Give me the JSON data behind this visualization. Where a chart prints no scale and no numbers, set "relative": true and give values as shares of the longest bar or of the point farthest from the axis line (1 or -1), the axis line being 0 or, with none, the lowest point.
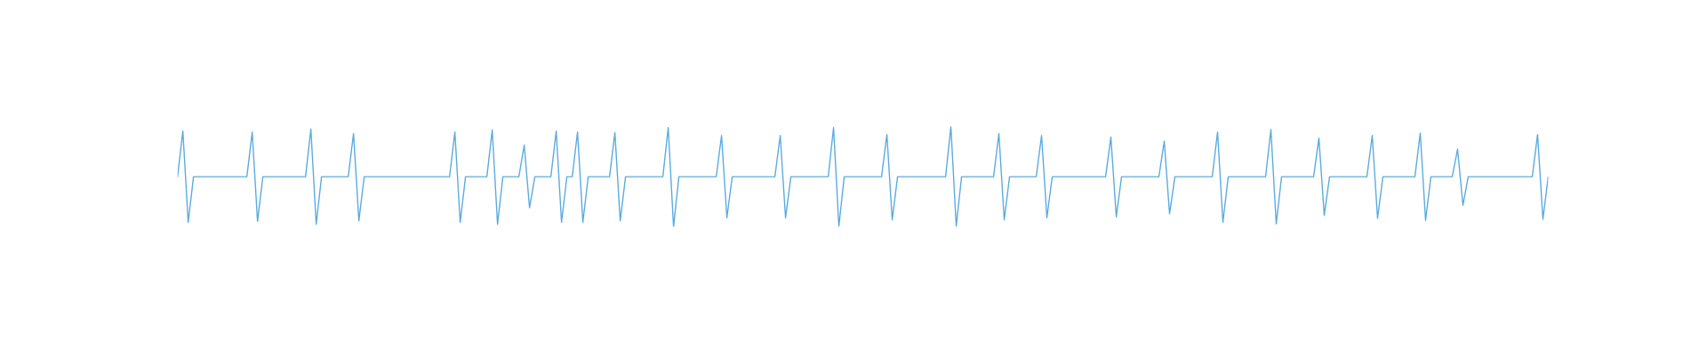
{
  "chart_data": {
    "type": "line",
    "relative": true,
    "categories": [
      null,
      null,
      null,
      null,
      null,
      null,
      null,
      null,
      null,
      null,
      null,
      null,
      null,
      null,
      null,
      null,
      null,
      null,
      null,
      null,
      null,
      null,
      null,
      null,
      null,
      null,
      null,
      null,
      null,
      null,
      null,
      null,
      null,
      null,
      null,
      null,
      null,
      null,
      null,
      null,
      null,
      null,
      null,
      null,
      null,
      null,
      null,
      null,
      null,
      null,
      null,
      null,
      null,
      null,
      null,
      null,
      null,
      null,
      null,
      null,
      null,
      null,
      null,
      null,
      null,
      null,
      null,
      null,
      null,
      null,
      null,
      null,
      null,
      null,
      null,
      null,
      null,
      null,
      null,
      null,
      null,
      null,
      null,
      null,
      null,
      null,
      null,
      null,
      null,
      null,
      null,
      null,
      null,
      null,
      null,
      null,
      null,
      null,
      null,
      null,
      null,
      null,
      null,
      null,
      null,
      null,
      null,
      null,
      null,
      null,
      null,
      null,
      null,
      null,
      null,
      null,
      null,
      null,
      null,
      null,
      null,
      null,
      null,
      null,
      null,
      null,
      null,
      null,
      null,
      null,
      null,
      null,
      null,
      null,
      null,
      null,
      null,
      null,
      null,
      null,
      null,
      null,
      null,
      null,
      null,
      null,
      null,
      null,
      null,
      null,
      null,
      null,
      null,
      null,
      null,
      null,
      null,
      null,
      null,
      null,
      null,
      null,
      null,
      null,
      null,
      null,
      null,
      null,
      null,
      null,
      null,
      null,
      null,
      null,
      null,
      null,
      null,
      null,
      null,
      null,
      null,
      null,
      null,
      null,
      null,
      null,
      null,
      null,
      null,
      null,
      null,
      null,
      null,
      null,
      null,
      null,
      null,
      null,
      null,
      null,
      null,
      null,
      null,
      null,
      null,
      null,
      null,
      null,
      null,
      null,
      null,
      null,
      null,
      null,
      null,
      null,
      null,
      null,
      null,
      null,
      null,
      null,
      null,
      null,
      null,
      null,
      null,
      null,
      null,
      null,
      null,
      null,
      null,
      null,
      null,
      null,
      null,
      null,
      null,
      null,
      null,
      null,
      null,
      null,
      null,
      null,
      null,
      null,
      null,
      null,
      null,
      null,
      null,
      null,
      null,
      null,
      null,
      null
    ],
    "series": [
      {
        "color": "#5aabe0",
        "values": [
          0.5,
          0.955,
          0.045,
          0.5,
          0.5,
          0.5,
          0.5,
          0.5,
          0.5,
          0.5,
          0.5,
          0.5,
          0.5,
          0.5,
          0.945,
          0.055,
          0.5,
          0.5,
          0.5,
          0.5,
          0.5,
          0.5,
          0.5,
          0.5,
          0.5,
          0.975,
          0.025,
          0.5,
          0.5,
          0.5,
          0.5,
          0.5,
          0.5,
          0.93,
          0.06,
          0.5,
          0.5,
          0.5,
          0.5,
          0.5,
          0.5,
          0.5,
          0.5,
          0.5,
          0.5,
          0.5,
          0.5,
          0.5,
          0.5,
          0.5,
          0.5,
          0.5,
          0.945,
          0.045,
          0.5,
          0.5,
          0.5,
          0.5,
          0.5,
          0.965,
          0.025,
          0.5,
          0.5,
          0.5,
          0.5,
          0.815,
          0.19,
          0.5,
          0.5,
          0.5,
          0.5,
          0.955,
          0.045,
          0.5,
          0.5,
          0.945,
          0.045,
          0.5,
          0.5,
          0.5,
          0.5,
          0.5,
          0.94,
          0.06,
          0.5,
          0.5,
          0.5,
          0.5,
          0.5,
          0.5,
          0.5,
          0.5,
          0.99,
          0,
          0.5,
          0.5,
          0.5,
          0.5,
          0.5,
          0.5,
          0.5,
          0.5,
          0.91,
          0.09,
          0.5,
          0.5,
          0.5,
          0.5,
          0.5,
          0.5,
          0.5,
          0.5,
          0.5,
          0.91,
          0.09,
          0.5,
          0.5,
          0.5,
          0.5,
          0.5,
          0.5,
          0.5,
          0.5,
          0.99,
          0.005,
          0.5,
          0.5,
          0.5,
          0.5,
          0.5,
          0.5,
          0.5,
          0.5,
          0.92,
          0.07,
          0.5,
          0.5,
          0.5,
          0.5,
          0.5,
          0.5,
          0.5,
          0.5,
          0.5,
          0.5,
          1,
          0.005,
          0.5,
          0.5,
          0.5,
          0.5,
          0.5,
          0.5,
          0.5,
          0.93,
          0.07,
          0.5,
          0.5,
          0.5,
          0.5,
          0.5,
          0.5,
          0.91,
          0.09,
          0.5,
          0.5,
          0.5,
          0.5,
          0.5,
          0.5,
          0.5,
          0.5,
          0.5,
          0.5,
          0.5,
          0.895,
          0.1,
          0.5,
          0.5,
          0.5,
          0.5,
          0.5,
          0.5,
          0.5,
          0.5,
          0.855,
          0.13,
          0.5,
          0.5,
          0.5,
          0.5,
          0.5,
          0.5,
          0.5,
          0.5,
          0.945,
          0.045,
          0.5,
          0.5,
          0.5,
          0.5,
          0.5,
          0.5,
          0.5,
          0.5,
          0.97,
          0.03,
          0.5,
          0.5,
          0.5,
          0.5,
          0.5,
          0.5,
          0.5,
          0.885,
          0.115,
          0.5,
          0.5,
          0.5,
          0.5,
          0.5,
          0.5,
          0.5,
          0.5,
          0.91,
          0.085,
          0.5,
          0.5,
          0.5,
          0.5,
          0.5,
          0.5,
          0.5,
          0.935,
          0.065,
          0.5,
          0.5,
          0.5,
          0.5,
          0.5,
          0.775,
          0.215,
          0.5,
          0.5,
          0.5,
          0.5,
          0.5,
          0.5,
          0.5,
          0.5,
          0.5,
          0.5,
          0.5,
          0.5,
          0.5,
          0.92,
          0.075,
          0.5
        ]
      }
    ]
  }
}
